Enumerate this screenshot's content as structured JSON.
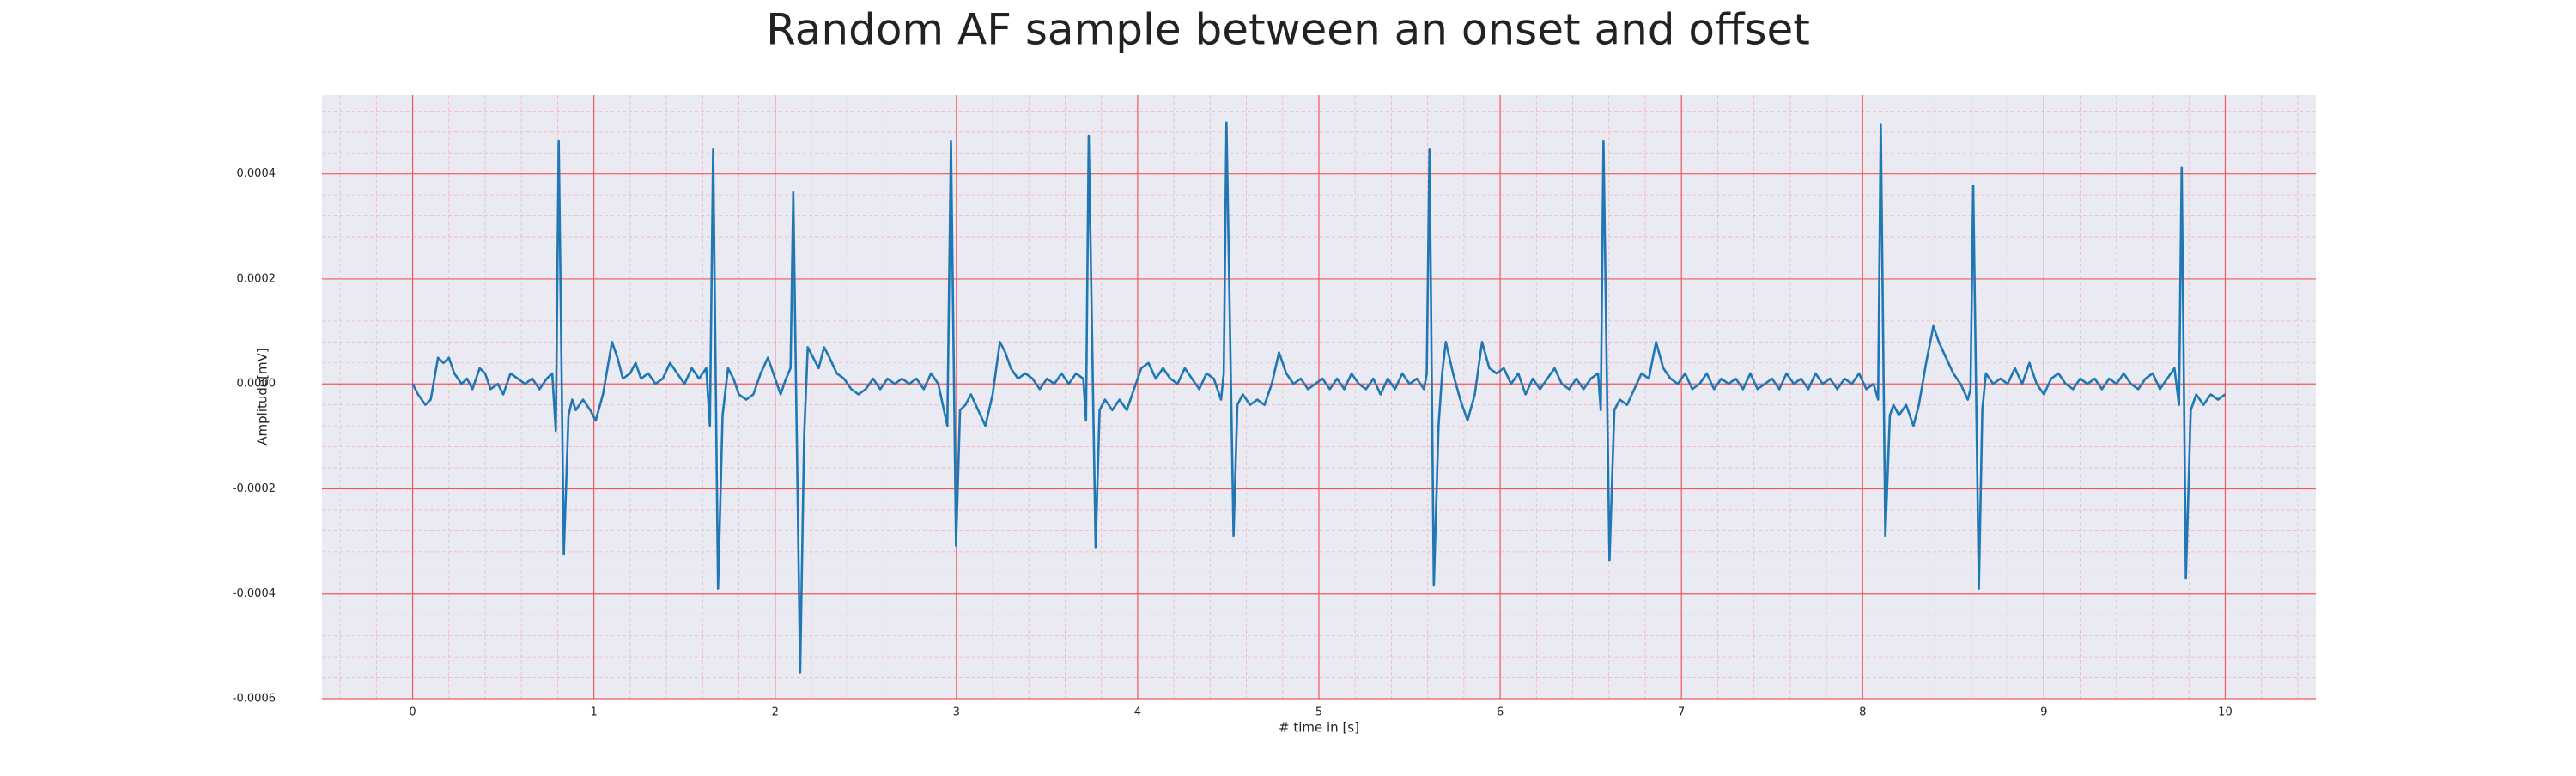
{
  "chart_data": {
    "type": "line",
    "title": "Random AF sample between an onset and offset",
    "xlabel": "# time in [s]",
    "ylabel": "Amplitude[mV]",
    "color": "#1f77b4",
    "xlim": [
      -0.5,
      10.5
    ],
    "xticks": [
      0,
      1,
      2,
      3,
      4,
      5,
      6,
      7,
      8,
      9,
      10
    ],
    "ylim": [
      -0.0006,
      0.00055
    ],
    "yticks": [
      {
        "value": -0.0006,
        "label": "-0.0006"
      },
      {
        "value": -0.0004,
        "label": "-0.0004"
      },
      {
        "value": -0.0002,
        "label": "-0.0002"
      },
      {
        "value": 0,
        "label": "0.0000"
      },
      0.0002,
      0.0004
    ],
    "grid": true,
    "minor_grid": true,
    "x": [
      0,
      0.03,
      0.07,
      0.1,
      0.14,
      0.17,
      0.2,
      0.23,
      0.27,
      0.3,
      0.33,
      0.37,
      0.4,
      0.43,
      0.47,
      0.5,
      0.54,
      0.58,
      0.62,
      0.66,
      0.7,
      0.74,
      0.77,
      0.79,
      0.806,
      0.834,
      0.86,
      0.88,
      0.9,
      0.94,
      0.98,
      1.01,
      1.05,
      1.1,
      1.13,
      1.16,
      1.2,
      1.23,
      1.26,
      1.3,
      1.34,
      1.38,
      1.42,
      1.46,
      1.5,
      1.54,
      1.58,
      1.62,
      1.64,
      1.658,
      1.685,
      1.71,
      1.74,
      1.77,
      1.8,
      1.84,
      1.88,
      1.92,
      1.96,
      2.0,
      2.03,
      2.06,
      2.085,
      2.1,
      2.138,
      2.16,
      2.18,
      2.21,
      2.24,
      2.27,
      2.3,
      2.34,
      2.38,
      2.42,
      2.46,
      2.5,
      2.54,
      2.58,
      2.62,
      2.66,
      2.7,
      2.74,
      2.78,
      2.82,
      2.86,
      2.9,
      2.95,
      2.97,
      2.998,
      3.02,
      3.05,
      3.08,
      3.12,
      3.16,
      3.2,
      3.24,
      3.27,
      3.3,
      3.34,
      3.38,
      3.42,
      3.46,
      3.5,
      3.54,
      3.58,
      3.62,
      3.66,
      3.7,
      3.715,
      3.73,
      3.768,
      3.79,
      3.82,
      3.86,
      3.9,
      3.94,
      3.98,
      4.02,
      4.06,
      4.1,
      4.14,
      4.18,
      4.22,
      4.26,
      4.3,
      4.34,
      4.38,
      4.42,
      4.46,
      4.475,
      4.49,
      4.529,
      4.55,
      4.58,
      4.62,
      4.66,
      4.7,
      4.74,
      4.78,
      4.82,
      4.86,
      4.9,
      4.94,
      4.98,
      5.02,
      5.06,
      5.1,
      5.14,
      5.18,
      5.22,
      5.26,
      5.3,
      5.34,
      5.38,
      5.42,
      5.46,
      5.5,
      5.54,
      5.58,
      5.595,
      5.61,
      5.634,
      5.66,
      5.68,
      5.7,
      5.74,
      5.78,
      5.82,
      5.86,
      5.9,
      5.94,
      5.98,
      6.02,
      6.06,
      6.1,
      6.14,
      6.18,
      6.22,
      6.26,
      6.3,
      6.34,
      6.38,
      6.42,
      6.46,
      6.5,
      6.54,
      6.555,
      6.57,
      6.603,
      6.63,
      6.66,
      6.7,
      6.74,
      6.78,
      6.82,
      6.86,
      6.9,
      6.94,
      6.98,
      7.02,
      7.06,
      7.1,
      7.14,
      7.18,
      7.22,
      7.26,
      7.3,
      7.34,
      7.38,
      7.42,
      7.46,
      7.5,
      7.54,
      7.58,
      7.62,
      7.66,
      7.7,
      7.74,
      7.78,
      7.82,
      7.86,
      7.9,
      7.94,
      7.98,
      8.02,
      8.06,
      8.085,
      8.1,
      8.125,
      8.15,
      8.17,
      8.2,
      8.24,
      8.28,
      8.31,
      8.35,
      8.39,
      8.42,
      8.46,
      8.5,
      8.54,
      8.58,
      8.595,
      8.61,
      8.641,
      8.66,
      8.68,
      8.72,
      8.76,
      8.8,
      8.84,
      8.88,
      8.92,
      8.96,
      9.0,
      9.04,
      9.08,
      9.12,
      9.16,
      9.2,
      9.24,
      9.28,
      9.32,
      9.36,
      9.4,
      9.44,
      9.48,
      9.52,
      9.56,
      9.6,
      9.64,
      9.68,
      9.72,
      9.745,
      9.76,
      9.783,
      9.81,
      9.84,
      9.88,
      9.92,
      9.96,
      10.0
    ],
    "values": [
      0,
      -2e-05,
      -4e-05,
      -3e-05,
      5e-05,
      4e-05,
      5e-05,
      2e-05,
      0,
      1e-05,
      -1e-05,
      3e-05,
      2e-05,
      -1e-05,
      0,
      -2e-05,
      2e-05,
      1e-05,
      0,
      1e-05,
      -1e-05,
      1e-05,
      2e-05,
      -9e-05,
      0.000463,
      -0.000324,
      -6e-05,
      -3e-05,
      -5e-05,
      -3e-05,
      -5e-05,
      -7e-05,
      -2e-05,
      8e-05,
      5e-05,
      1e-05,
      2e-05,
      4e-05,
      1e-05,
      2e-05,
      0,
      1e-05,
      4e-05,
      2e-05,
      0,
      3e-05,
      1e-05,
      3e-05,
      -8e-05,
      0.000448,
      -0.00039,
      -6e-05,
      3e-05,
      1e-05,
      -2e-05,
      -3e-05,
      -2e-05,
      2e-05,
      5e-05,
      1e-05,
      -2e-05,
      1e-05,
      3e-05,
      0.000365,
      -0.00055,
      -0.0001,
      7e-05,
      5e-05,
      3e-05,
      7e-05,
      5e-05,
      2e-05,
      1e-05,
      -1e-05,
      -2e-05,
      -1e-05,
      1e-05,
      -1e-05,
      1e-05,
      0,
      1e-05,
      0,
      1e-05,
      -1e-05,
      2e-05,
      0,
      -8e-05,
      0.000463,
      -0.000308,
      -5e-05,
      -4e-05,
      -2e-05,
      -5e-05,
      -8e-05,
      -2e-05,
      8e-05,
      6e-05,
      3e-05,
      1e-05,
      2e-05,
      1e-05,
      -1e-05,
      1e-05,
      0,
      2e-05,
      0,
      2e-05,
      1e-05,
      -7e-05,
      0.000473,
      -0.000311,
      -5e-05,
      -3e-05,
      -5e-05,
      -3e-05,
      -5e-05,
      -1e-05,
      3e-05,
      4e-05,
      1e-05,
      3e-05,
      1e-05,
      0,
      3e-05,
      1e-05,
      -1e-05,
      2e-05,
      1e-05,
      -3e-05,
      2e-05,
      0.000498,
      -0.000289,
      -4e-05,
      -2e-05,
      -4e-05,
      -3e-05,
      -4e-05,
      0,
      6e-05,
      2e-05,
      0,
      1e-05,
      -1e-05,
      0,
      1e-05,
      -1e-05,
      1e-05,
      -1e-05,
      2e-05,
      0,
      -1e-05,
      1e-05,
      -2e-05,
      1e-05,
      -1e-05,
      2e-05,
      0,
      1e-05,
      -1e-05,
      2e-05,
      0.000448,
      -0.000384,
      -8e-05,
      2e-05,
      8e-05,
      2e-05,
      -3e-05,
      -7e-05,
      -2e-05,
      8e-05,
      3e-05,
      2e-05,
      3e-05,
      0,
      2e-05,
      -2e-05,
      1e-05,
      -1e-05,
      1e-05,
      3e-05,
      0,
      -1e-05,
      1e-05,
      -1e-05,
      1e-05,
      2e-05,
      -5e-05,
      0.000463,
      -0.000337,
      -5e-05,
      -3e-05,
      -4e-05,
      -1e-05,
      2e-05,
      1e-05,
      8e-05,
      3e-05,
      1e-05,
      0,
      2e-05,
      -1e-05,
      0,
      2e-05,
      -1e-05,
      1e-05,
      0,
      1e-05,
      -1e-05,
      2e-05,
      -1e-05,
      0,
      1e-05,
      -1e-05,
      2e-05,
      0,
      1e-05,
      -1e-05,
      2e-05,
      0,
      1e-05,
      -1e-05,
      1e-05,
      0,
      2e-05,
      -1e-05,
      0,
      -3e-05,
      0.000495,
      -0.000289,
      -6e-05,
      -4e-05,
      -6e-05,
      -4e-05,
      -8e-05,
      -4e-05,
      4e-05,
      0.00011,
      8e-05,
      5e-05,
      2e-05,
      0,
      -3e-05,
      -1e-05,
      0.000378,
      -0.00039,
      -5e-05,
      2e-05,
      0,
      1e-05,
      0,
      3e-05,
      0,
      4e-05,
      0,
      -2e-05,
      1e-05,
      2e-05,
      0,
      -1e-05,
      1e-05,
      0,
      1e-05,
      -1e-05,
      1e-05,
      0,
      2e-05,
      0,
      -1e-05,
      1e-05,
      2e-05,
      -1e-05,
      1e-05,
      3e-05,
      -4e-05,
      0.000413,
      -0.000371,
      -5e-05,
      -2e-05,
      -4e-05,
      -2e-05,
      -3e-05,
      -2e-05
    ]
  }
}
